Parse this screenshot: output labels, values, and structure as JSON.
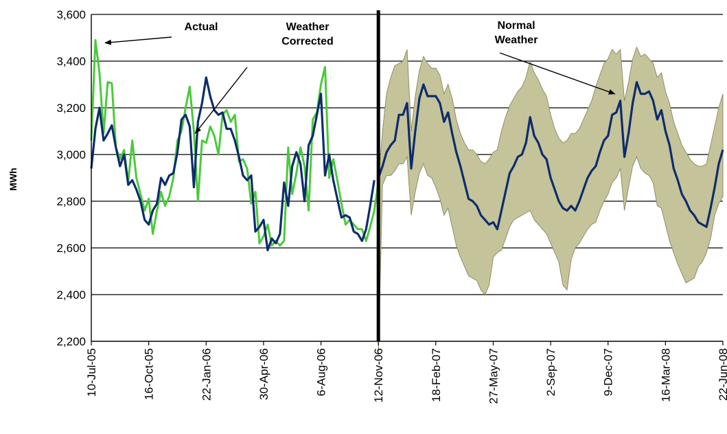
{
  "chart_data": {
    "type": "line",
    "title": "",
    "xlabel": "",
    "ylabel": "MWh",
    "ylim": [
      2200,
      3600
    ],
    "y_ticks": [
      "2,200",
      "2,400",
      "2,600",
      "2,800",
      "3,000",
      "3,200",
      "3,400",
      "3,600"
    ],
    "x_tick_labels": [
      "10-Jul-05",
      "16-Oct-05",
      "22-Jan-06",
      "30-Apr-06",
      "6-Aug-06",
      "12-Nov-06",
      "18-Feb-07",
      "27-May-07",
      "2-Sep-07",
      "9-Dec-07",
      "16-Mar-08",
      "22-Jun-08"
    ],
    "grid": "horizontal",
    "legend": "none",
    "forecast_start": "12-Nov-06",
    "colors": {
      "actual": "#4CC93C",
      "weather_corrected": "#0D2C6B",
      "band": "#C4C39A",
      "band_edge": "#8F8E6A",
      "divider": "#000000"
    },
    "annotations": [
      {
        "text_lines": [
          "Actual"
        ],
        "points_to": "Actual"
      },
      {
        "text_lines": [
          "Weather",
          "Corrected"
        ],
        "points_to": "Weather Corrected"
      },
      {
        "text_lines": [
          "Normal",
          "Weather"
        ],
        "points_to": "Normal Weather"
      }
    ],
    "series": [
      {
        "name": "Actual",
        "start": "10-Jul-05",
        "step_days": 7,
        "values": [
          3060,
          3490,
          3350,
          3090,
          3310,
          3305,
          3030,
          2980,
          3020,
          2880,
          3060,
          2900,
          2830,
          2760,
          2810,
          2660,
          2760,
          2840,
          2780,
          2820,
          2900,
          3060,
          3100,
          3200,
          3290,
          3100,
          2800,
          3060,
          3050,
          3120,
          3080,
          3000,
          3170,
          3190,
          3140,
          3170,
          2970,
          2980,
          2940,
          2790,
          2840,
          2620,
          2650,
          2700,
          2610,
          2630,
          2610,
          2630,
          3030,
          2830,
          2920,
          3030,
          2950,
          2760,
          3150,
          3180,
          3300,
          3375,
          2900,
          2980,
          2890,
          2790,
          2700,
          2720,
          2700,
          2680,
          2680,
          2630,
          2690,
          2760,
          2880
        ]
      },
      {
        "name": "Weather Corrected",
        "start": "10-Jul-05",
        "step_days": 7,
        "values": [
          2940,
          3110,
          3200,
          3060,
          3090,
          3125,
          3030,
          2950,
          3000,
          2870,
          2890,
          2850,
          2800,
          2720,
          2700,
          2760,
          2790,
          2900,
          2870,
          2910,
          2920,
          3010,
          3150,
          3170,
          3120,
          2860,
          3140,
          3220,
          3330,
          3250,
          3190,
          3170,
          3180,
          3110,
          3110,
          3060,
          2990,
          2910,
          2890,
          2910,
          2670,
          2690,
          2720,
          2590,
          2640,
          2620,
          2660,
          2880,
          2780,
          2950,
          3010,
          2960,
          2800,
          3040,
          3080,
          3170,
          3260,
          2910,
          3000,
          2890,
          2810,
          2730,
          2740,
          2730,
          2670,
          2660,
          2630,
          2680,
          2780,
          2890
        ]
      },
      {
        "name": "Normal Weather",
        "start": "12-Nov-06",
        "step_days": 7,
        "values": [
          2900,
          2950,
          3010,
          3040,
          3060,
          3170,
          3170,
          3220,
          2940,
          3100,
          3240,
          3300,
          3250,
          3250,
          3250,
          3220,
          3140,
          3180,
          3090,
          3010,
          2950,
          2880,
          2810,
          2800,
          2780,
          2740,
          2720,
          2700,
          2710,
          2680,
          2760,
          2840,
          2920,
          2950,
          2990,
          3000,
          3050,
          3160,
          3080,
          3050,
          3000,
          2980,
          2900,
          2850,
          2800,
          2770,
          2760,
          2780,
          2760,
          2800,
          2850,
          2900,
          2930,
          2950,
          3010,
          3060,
          3080,
          3170,
          3180,
          3230,
          2990,
          3090,
          3220,
          3310,
          3260,
          3260,
          3270,
          3230,
          3150,
          3190,
          3100,
          3040,
          2940,
          2890,
          2830,
          2800,
          2760,
          2740,
          2710,
          2700,
          2690,
          2770,
          2860,
          2960,
          3020
        ],
        "band_low": [
          2140,
          2870,
          2910,
          2910,
          2930,
          2960,
          2960,
          2990,
          2740,
          2840,
          2920,
          2960,
          2910,
          2900,
          2860,
          2810,
          2740,
          2770,
          2690,
          2610,
          2560,
          2520,
          2480,
          2470,
          2460,
          2420,
          2400,
          2440,
          2560,
          2580,
          2590,
          2640,
          2690,
          2720,
          2730,
          2740,
          2750,
          2760,
          2720,
          2700,
          2680,
          2660,
          2620,
          2580,
          2540,
          2440,
          2420,
          2550,
          2600,
          2620,
          2650,
          2680,
          2700,
          2710,
          2760,
          2800,
          2830,
          2880,
          2900,
          2940,
          2760,
          2860,
          2950,
          2990,
          2940,
          2920,
          2910,
          2880,
          2780,
          2770,
          2700,
          2630,
          2580,
          2530,
          2490,
          2450,
          2460,
          2470,
          2520,
          2540,
          2580,
          2640,
          2740,
          2790,
          2820
        ],
        "band_high": [
          2880,
          3100,
          3260,
          3330,
          3380,
          3390,
          3400,
          3450,
          3100,
          3250,
          3360,
          3420,
          3390,
          3370,
          3370,
          3340,
          3260,
          3300,
          3240,
          3150,
          3090,
          3050,
          3020,
          3020,
          3000,
          2970,
          2960,
          2980,
          3010,
          3020,
          3100,
          3160,
          3210,
          3240,
          3270,
          3290,
          3330,
          3400,
          3350,
          3320,
          3280,
          3250,
          3170,
          3110,
          3070,
          3050,
          3060,
          3090,
          3090,
          3110,
          3150,
          3190,
          3230,
          3290,
          3340,
          3390,
          3410,
          3450,
          3430,
          3450,
          3230,
          3310,
          3410,
          3460,
          3420,
          3430,
          3410,
          3390,
          3330,
          3350,
          3270,
          3220,
          3140,
          3090,
          3040,
          3010,
          2980,
          2960,
          2950,
          2950,
          2960,
          3040,
          3120,
          3200,
          3260
        ]
      }
    ]
  }
}
